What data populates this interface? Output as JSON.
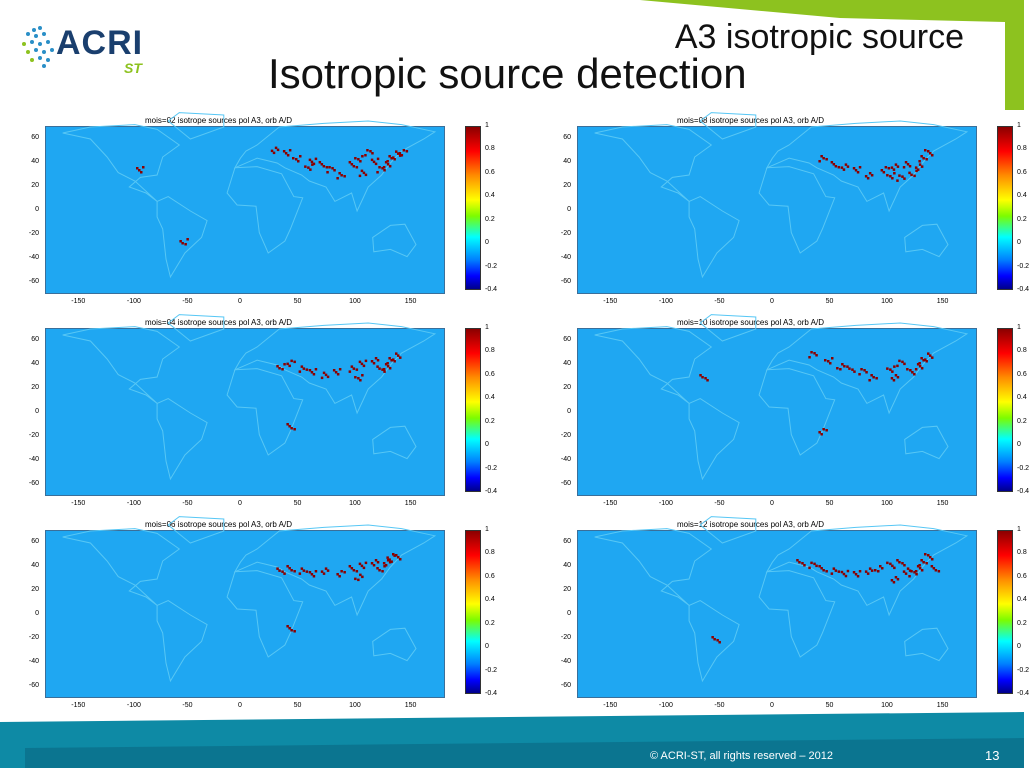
{
  "header": {
    "title": "A3 isotropic source",
    "subtitle": "Isotropic source detection"
  },
  "logo": {
    "text_main": "ACRI",
    "text_sub": "ST"
  },
  "footer": {
    "copyright": "© ACRI-ST, all rights reserved – 2012",
    "page_number": "13"
  },
  "colors": {
    "accent_green": "#8dc21f",
    "footer_teal": "#0e8aa5",
    "ocean": "#1fa7f2",
    "land_outline": "#57c7f5",
    "source": "#8b0000"
  },
  "chart_data": [
    {
      "type": "scatter",
      "title": "mois=02 isotrope sources pol A3, orb A/D",
      "xlim": [
        -180,
        180
      ],
      "ylim": [
        -70,
        70
      ],
      "xticks": [
        "-150",
        "-100",
        "-50",
        "0",
        "50",
        "100",
        "150"
      ],
      "yticks": [
        "60",
        "40",
        "20",
        "0",
        "-20",
        "-40",
        "-60"
      ],
      "colorbar": {
        "ticks": [
          "1",
          "0.8",
          "0.6",
          "0.4",
          "0.2",
          "0",
          "-0.2",
          "-0.4"
        ],
        "range": [
          -0.4,
          1
        ]
      },
      "points": [
        [
          25,
          52
        ],
        [
          35,
          50
        ],
        [
          45,
          45
        ],
        [
          55,
          38
        ],
        [
          60,
          42
        ],
        [
          68,
          40
        ],
        [
          75,
          35
        ],
        [
          85,
          30
        ],
        [
          100,
          45
        ],
        [
          110,
          50
        ],
        [
          115,
          42
        ],
        [
          120,
          35
        ],
        [
          125,
          40
        ],
        [
          130,
          45
        ],
        [
          135,
          48
        ],
        [
          105,
          32
        ],
        [
          95,
          40
        ],
        [
          140,
          50
        ],
        [
          -90,
          35
        ],
        [
          -50,
          -30
        ]
      ]
    },
    {
      "type": "scatter",
      "title": "mois=08 isotrope sources pol A3, orb A/D",
      "xlim": [
        -180,
        180
      ],
      "ylim": [
        -70,
        70
      ],
      "xticks": [
        "-150",
        "-100",
        "-50",
        "0",
        "50",
        "100",
        "150"
      ],
      "yticks": [
        "60",
        "40",
        "20",
        "0",
        "-20",
        "-40",
        "-60"
      ],
      "colorbar": {
        "ticks": [
          "1",
          "0.8",
          "0.6",
          "0.4",
          "0.2",
          "0",
          "-0.2",
          "-0.4"
        ],
        "range": [
          -0.4,
          1
        ]
      },
      "points": [
        [
          40,
          45
        ],
        [
          50,
          40
        ],
        [
          60,
          38
        ],
        [
          70,
          35
        ],
        [
          80,
          30
        ],
        [
          95,
          35
        ],
        [
          105,
          38
        ],
        [
          115,
          40
        ],
        [
          120,
          32
        ],
        [
          125,
          38
        ],
        [
          130,
          45
        ],
        [
          135,
          50
        ],
        [
          110,
          28
        ],
        [
          100,
          30
        ]
      ]
    },
    {
      "type": "scatter",
      "title": "mois=04 isotrope sources pol A3, orb A/D",
      "xlim": [
        -180,
        180
      ],
      "ylim": [
        -70,
        70
      ],
      "xticks": [
        "-150",
        "-100",
        "-50",
        "0",
        "50",
        "100",
        "150"
      ],
      "yticks": [
        "60",
        "40",
        "20",
        "0",
        "-20",
        "-40",
        "-60"
      ],
      "colorbar": {
        "ticks": [
          "1",
          "0.8",
          "0.6",
          "0.4",
          "0.2",
          "0",
          "-0.2",
          "-0.4"
        ],
        "range": [
          -0.4,
          1
        ]
      },
      "points": [
        [
          30,
          40
        ],
        [
          40,
          42
        ],
        [
          50,
          38
        ],
        [
          60,
          35
        ],
        [
          70,
          32
        ],
        [
          80,
          35
        ],
        [
          95,
          38
        ],
        [
          105,
          42
        ],
        [
          115,
          45
        ],
        [
          120,
          38
        ],
        [
          125,
          40
        ],
        [
          130,
          45
        ],
        [
          135,
          48
        ],
        [
          100,
          30
        ],
        [
          40,
          -15
        ]
      ]
    },
    {
      "type": "scatter",
      "title": "mois=10 isotrope sources pol A3, orb A/D",
      "xlim": [
        -180,
        180
      ],
      "ylim": [
        -70,
        70
      ],
      "xticks": [
        "-150",
        "-100",
        "-50",
        "0",
        "50",
        "100",
        "150"
      ],
      "yticks": [
        "60",
        "40",
        "20",
        "0",
        "-20",
        "-40",
        "-60"
      ],
      "colorbar": {
        "ticks": [
          "1",
          "0.8",
          "0.6",
          "0.4",
          "0.2",
          "0",
          "-0.2",
          "-0.4"
        ],
        "range": [
          -0.4,
          1
        ]
      },
      "points": [
        [
          -60,
          30
        ],
        [
          30,
          50
        ],
        [
          45,
          45
        ],
        [
          55,
          40
        ],
        [
          65,
          38
        ],
        [
          75,
          35
        ],
        [
          85,
          30
        ],
        [
          100,
          38
        ],
        [
          110,
          42
        ],
        [
          118,
          35
        ],
        [
          125,
          40
        ],
        [
          130,
          45
        ],
        [
          135,
          48
        ],
        [
          105,
          30
        ],
        [
          40,
          -20
        ]
      ]
    },
    {
      "type": "scatter",
      "title": "mois=06 isotrope sources pol A3, orb A/D",
      "xlim": [
        -180,
        180
      ],
      "ylim": [
        -70,
        70
      ],
      "xticks": [
        "-150",
        "-100",
        "-50",
        "0",
        "50",
        "100",
        "150"
      ],
      "yticks": [
        "60",
        "40",
        "20",
        "0",
        "-20",
        "-40",
        "-60"
      ],
      "colorbar": {
        "ticks": [
          "1",
          "0.8",
          "0.6",
          "0.4",
          "0.2",
          "0",
          "-0.2",
          "-0.4"
        ],
        "range": [
          -0.4,
          1
        ]
      },
      "points": [
        [
          30,
          38
        ],
        [
          40,
          40
        ],
        [
          50,
          38
        ],
        [
          60,
          35
        ],
        [
          70,
          38
        ],
        [
          85,
          35
        ],
        [
          95,
          40
        ],
        [
          105,
          42
        ],
        [
          115,
          45
        ],
        [
          120,
          40
        ],
        [
          125,
          45
        ],
        [
          130,
          48
        ],
        [
          135,
          50
        ],
        [
          100,
          32
        ],
        [
          40,
          -15
        ]
      ]
    },
    {
      "type": "scatter",
      "title": "mois=12 isotrope sources pol A3, orb A/D",
      "xlim": [
        -180,
        180
      ],
      "ylim": [
        -70,
        70
      ],
      "xticks": [
        "-150",
        "-100",
        "-50",
        "0",
        "50",
        "100",
        "150"
      ],
      "yticks": [
        "60",
        "40",
        "20",
        "0",
        "-20",
        "-40",
        "-60"
      ],
      "colorbar": {
        "ticks": [
          "1",
          "0.8",
          "0.6",
          "0.4",
          "0.2",
          "0",
          "-0.2",
          "-0.4"
        ],
        "range": [
          -0.4,
          1
        ]
      },
      "points": [
        [
          20,
          45
        ],
        [
          30,
          42
        ],
        [
          40,
          40
        ],
        [
          50,
          38
        ],
        [
          60,
          36
        ],
        [
          70,
          35
        ],
        [
          80,
          38
        ],
        [
          90,
          40
        ],
        [
          100,
          42
        ],
        [
          110,
          45
        ],
        [
          115,
          38
        ],
        [
          120,
          35
        ],
        [
          125,
          40
        ],
        [
          130,
          45
        ],
        [
          135,
          50
        ],
        [
          105,
          30
        ],
        [
          140,
          40
        ],
        [
          -50,
          -25
        ]
      ]
    }
  ]
}
